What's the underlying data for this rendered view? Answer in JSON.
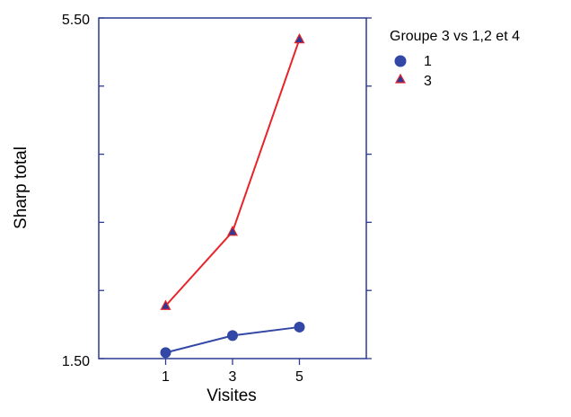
{
  "chart_data": {
    "type": "line",
    "title": "",
    "xlabel": "Visites",
    "ylabel": "Sharp total",
    "x": [
      1,
      3,
      5
    ],
    "x_ticks": [
      "1",
      "3",
      "5"
    ],
    "xlim": [
      -1,
      7
    ],
    "ylim": [
      1.5,
      5.5
    ],
    "y_tick_labels": [
      "5.50",
      "1.50"
    ],
    "grid": false,
    "legend": {
      "title": "Groupe 3 vs 1,2 et 4",
      "placement": "right"
    },
    "series": [
      {
        "name": "1",
        "values": [
          1.57,
          1.77,
          1.87
        ],
        "color": "#3347A6",
        "marker": "circle"
      },
      {
        "name": "3",
        "values": [
          2.12,
          2.99,
          5.25
        ],
        "color": "#E8232A",
        "marker": "triangle",
        "marker_fill": "#2B3A94"
      }
    ]
  }
}
